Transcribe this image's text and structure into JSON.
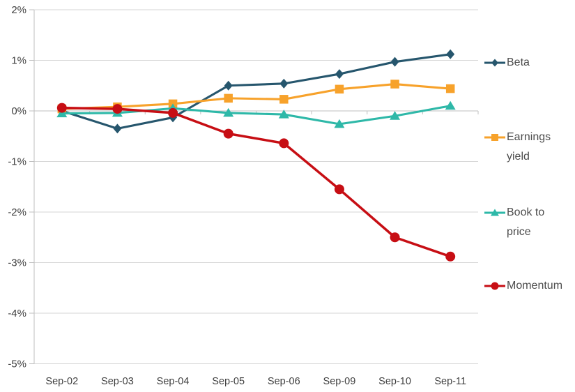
{
  "chart_data": {
    "type": "line",
    "title": "",
    "categories": [
      "Sep-02",
      "Sep-03",
      "Sep-04",
      "Sep-05",
      "Sep-06",
      "Sep-09",
      "Sep-10",
      "Sep-11"
    ],
    "series": [
      {
        "name": "Beta",
        "marker": "diamond",
        "color": "#26566D",
        "values": [
          0.0,
          -0.35,
          -0.13,
          0.5,
          0.54,
          0.73,
          0.97,
          1.12
        ]
      },
      {
        "name": "Earnings yield",
        "marker": "square",
        "color": "#F7A22B",
        "values": [
          0.04,
          0.08,
          0.14,
          0.25,
          0.23,
          0.43,
          0.53,
          0.44
        ]
      },
      {
        "name": "Book to price",
        "marker": "triangle",
        "color": "#2EB8A8",
        "values": [
          -0.05,
          -0.04,
          0.05,
          -0.04,
          -0.07,
          -0.26,
          -0.1,
          0.1
        ]
      },
      {
        "name": "Momentum",
        "marker": "circle",
        "color": "#C70E14",
        "values": [
          0.06,
          0.04,
          -0.04,
          -0.45,
          -0.64,
          -1.55,
          -2.5,
          -2.88
        ]
      }
    ],
    "y_axis": {
      "min": -5,
      "max": 2,
      "step": 1,
      "tick_labels": [
        "2%",
        "1%",
        "0%",
        "-1%",
        "-2%",
        "-3%",
        "-4%",
        "-5%"
      ],
      "format": "percent"
    },
    "x_axis": {
      "tick_labels": [
        "Sep-02",
        "Sep-03",
        "Sep-04",
        "Sep-05",
        "Sep-06",
        "Sep-09",
        "Sep-10",
        "Sep-11"
      ]
    },
    "grid": true,
    "legend_position": "right",
    "colors": {
      "background": "#FFFFFF",
      "gridline": "#D6D6D6",
      "axis": "#BFBFBF",
      "axis_label": "#3F3F3F",
      "legend_text": "#4D4D4D"
    }
  }
}
